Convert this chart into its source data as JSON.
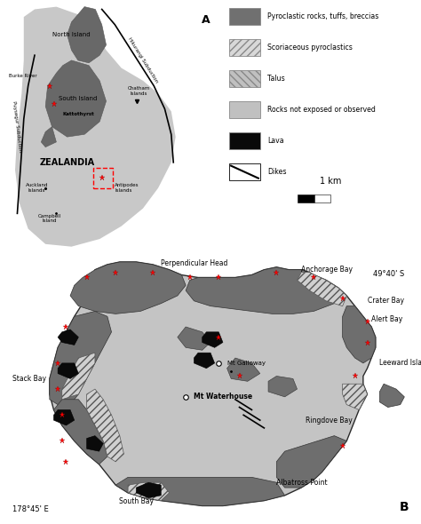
{
  "background_color": "#ffffff",
  "inset_bg": "#c8c8c8",
  "nz_color": "#707070",
  "pyro_color": "#707070",
  "light_gray": "#c0c0c0",
  "lava_color": "#0a0a0a",
  "scori_color": "#c8c8c8",
  "talus_color": "#b8b8b8",
  "island_bg": "#c0c0c0",
  "legend_items": [
    {
      "label": "Pyroclastic rocks, tuffs, breccias",
      "color": "#707070",
      "hatch": ""
    },
    {
      "label": "Scoriaceous pyroclastics",
      "color": "#d8d8d8",
      "hatch": "////"
    },
    {
      "label": "Talus",
      "color": "#c8c8c8",
      "hatch": "\\\\\\\\"
    },
    {
      "label": "Rocks not exposed or observed",
      "color": "#c0c0c0",
      "hatch": ""
    },
    {
      "label": "Lava",
      "color": "#0a0a0a",
      "hatch": ""
    },
    {
      "label": "Dikes",
      "color": "#ffffff",
      "hatch": "diag"
    }
  ]
}
